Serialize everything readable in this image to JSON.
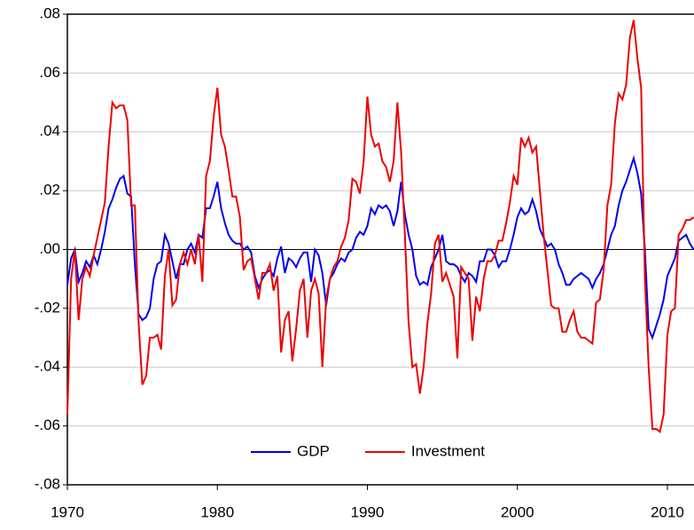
{
  "chart_data": {
    "type": "line",
    "x": [
      1970,
      1970.25,
      1970.5,
      1970.75,
      1971,
      1971.25,
      1971.5,
      1971.75,
      1972,
      1972.25,
      1972.5,
      1972.75,
      1973,
      1973.25,
      1973.5,
      1973.75,
      1974,
      1974.25,
      1974.5,
      1974.75,
      1975,
      1975.25,
      1975.5,
      1975.75,
      1976,
      1976.25,
      1976.5,
      1976.75,
      1977,
      1977.25,
      1977.5,
      1977.75,
      1978,
      1978.25,
      1978.5,
      1978.75,
      1979,
      1979.25,
      1979.5,
      1979.75,
      1980,
      1980.25,
      1980.5,
      1980.75,
      1981,
      1981.25,
      1981.5,
      1981.75,
      1982,
      1982.25,
      1982.5,
      1982.75,
      1983,
      1983.25,
      1983.5,
      1983.75,
      1984,
      1984.25,
      1984.5,
      1984.75,
      1985,
      1985.25,
      1985.5,
      1985.75,
      1986,
      1986.25,
      1986.5,
      1986.75,
      1987,
      1987.25,
      1987.5,
      1987.75,
      1988,
      1988.25,
      1988.5,
      1988.75,
      1989,
      1989.25,
      1989.5,
      1989.75,
      1990,
      1990.25,
      1990.5,
      1990.75,
      1991,
      1991.25,
      1991.5,
      1991.75,
      1992,
      1992.25,
      1992.5,
      1992.75,
      1993,
      1993.25,
      1993.5,
      1993.75,
      1994,
      1994.25,
      1994.5,
      1994.75,
      1995,
      1995.25,
      1995.5,
      1995.75,
      1996,
      1996.25,
      1996.5,
      1996.75,
      1997,
      1997.25,
      1997.5,
      1997.75,
      1998,
      1998.25,
      1998.5,
      1998.75,
      1999,
      1999.25,
      1999.5,
      1999.75,
      2000,
      2000.25,
      2000.5,
      2000.75,
      2001,
      2001.25,
      2001.5,
      2001.75,
      2002,
      2002.25,
      2002.5,
      2002.75,
      2003,
      2003.25,
      2003.5,
      2003.75,
      2004,
      2004.25,
      2004.5,
      2004.75,
      2005,
      2005.25,
      2005.5,
      2005.75,
      2006,
      2006.25,
      2006.5,
      2006.75,
      2007,
      2007.25,
      2007.5,
      2007.75,
      2008,
      2008.25,
      2008.5,
      2008.75,
      2009,
      2009.25,
      2009.5,
      2009.75,
      2010,
      2010.25,
      2010.5,
      2010.75,
      2011,
      2011.25,
      2011.5,
      2011.75
    ],
    "series": [
      {
        "name": "GDP",
        "color": "#0000ee",
        "values": [
          -0.012,
          -0.003,
          0.0,
          -0.011,
          -0.008,
          -0.004,
          -0.006,
          -0.002,
          -0.005,
          0.0,
          0.006,
          0.014,
          0.017,
          0.021,
          0.024,
          0.025,
          0.019,
          0.018,
          -0.005,
          -0.022,
          -0.024,
          -0.023,
          -0.02,
          -0.01,
          -0.005,
          -0.004,
          0.005,
          0.002,
          -0.004,
          -0.01,
          -0.005,
          -0.005,
          0.0,
          0.002,
          -0.001,
          0.005,
          0.004,
          0.014,
          0.014,
          0.018,
          0.023,
          0.014,
          0.009,
          0.005,
          0.003,
          0.002,
          0.002,
          0.0,
          0.001,
          -0.001,
          -0.009,
          -0.013,
          -0.01,
          -0.008,
          -0.007,
          -0.009,
          -0.003,
          0.001,
          -0.008,
          -0.003,
          -0.004,
          -0.006,
          -0.003,
          -0.001,
          -0.001,
          -0.011,
          0.0,
          -0.002,
          -0.008,
          -0.019,
          -0.01,
          -0.008,
          -0.005,
          -0.003,
          -0.004,
          -0.001,
          0.0,
          0.004,
          0.006,
          0.005,
          0.008,
          0.014,
          0.012,
          0.015,
          0.014,
          0.015,
          0.013,
          0.008,
          0.013,
          0.023,
          0.012,
          0.005,
          0.0,
          -0.009,
          -0.012,
          -0.011,
          -0.012,
          -0.006,
          -0.003,
          0.0,
          0.005,
          -0.004,
          -0.005,
          -0.005,
          -0.006,
          -0.009,
          -0.011,
          -0.008,
          -0.009,
          -0.011,
          -0.004,
          -0.004,
          0.0,
          0.0,
          -0.002,
          -0.006,
          -0.004,
          -0.004,
          0.0,
          0.005,
          0.011,
          0.014,
          0.012,
          0.013,
          0.017,
          0.013,
          0.007,
          0.004,
          0.001,
          0.002,
          0.0,
          -0.005,
          -0.008,
          -0.012,
          -0.012,
          -0.01,
          -0.009,
          -0.008,
          -0.009,
          -0.01,
          -0.013,
          -0.01,
          -0.008,
          -0.005,
          0.0,
          0.005,
          0.008,
          0.015,
          0.02,
          0.023,
          0.027,
          0.031,
          0.026,
          0.019,
          0.0,
          -0.027,
          -0.03,
          -0.026,
          -0.022,
          -0.017,
          -0.009,
          -0.006,
          -0.003,
          0.003,
          0.004,
          0.005,
          0.002,
          0.0
        ]
      },
      {
        "name": "Investment",
        "color": "#ee0000",
        "values": [
          -0.056,
          -0.01,
          0.0,
          -0.024,
          -0.01,
          -0.006,
          -0.009,
          -0.002,
          0.004,
          0.01,
          0.016,
          0.035,
          0.05,
          0.048,
          0.049,
          0.049,
          0.044,
          0.015,
          0.015,
          -0.025,
          -0.046,
          -0.043,
          -0.03,
          -0.03,
          -0.029,
          -0.034,
          -0.009,
          0.0,
          -0.019,
          -0.017,
          -0.005,
          -0.001,
          -0.005,
          0.0,
          -0.005,
          0.005,
          -0.011,
          0.025,
          0.03,
          0.045,
          0.055,
          0.039,
          0.035,
          0.027,
          0.018,
          0.018,
          0.011,
          -0.007,
          -0.004,
          -0.003,
          -0.01,
          -0.017,
          -0.008,
          -0.008,
          -0.005,
          -0.014,
          -0.009,
          -0.035,
          -0.024,
          -0.021,
          -0.038,
          -0.027,
          -0.014,
          -0.01,
          -0.03,
          -0.014,
          -0.01,
          -0.015,
          -0.04,
          -0.017,
          -0.01,
          -0.006,
          -0.004,
          0.001,
          0.004,
          0.01,
          0.024,
          0.023,
          0.019,
          0.03,
          0.052,
          0.039,
          0.035,
          0.036,
          0.03,
          0.028,
          0.023,
          0.03,
          0.05,
          0.033,
          0.005,
          -0.025,
          -0.04,
          -0.039,
          -0.049,
          -0.04,
          -0.025,
          -0.015,
          0.002,
          0.005,
          -0.011,
          -0.008,
          -0.012,
          -0.016,
          -0.037,
          -0.006,
          -0.008,
          -0.01,
          -0.031,
          -0.016,
          -0.021,
          -0.01,
          -0.004,
          -0.004,
          -0.002,
          0.003,
          0.003,
          0.009,
          0.016,
          0.025,
          0.022,
          0.038,
          0.035,
          0.038,
          0.033,
          0.035,
          0.02,
          0.005,
          -0.007,
          -0.019,
          -0.02,
          -0.02,
          -0.028,
          -0.028,
          -0.024,
          -0.021,
          -0.028,
          -0.03,
          -0.03,
          -0.031,
          -0.032,
          -0.018,
          -0.017,
          -0.007,
          0.015,
          0.022,
          0.043,
          0.053,
          0.051,
          0.056,
          0.072,
          0.078,
          0.065,
          0.055,
          -0.01,
          -0.04,
          -0.061,
          -0.061,
          -0.062,
          -0.056,
          -0.029,
          -0.021,
          -0.02,
          0.005,
          0.007,
          0.01,
          0.01,
          0.011
        ]
      }
    ],
    "xlim": [
      1970,
      2011.75
    ],
    "xticks": [
      1970,
      1980,
      1990,
      2000,
      2010
    ],
    "ylim": [
      -0.08,
      0.08
    ],
    "yticks": [
      {
        "value": -0.08,
        "label": "-.08"
      },
      {
        "value": -0.06,
        "label": "-.06"
      },
      {
        "value": -0.04,
        "label": "-.04"
      },
      {
        "value": -0.02,
        "label": "-.02"
      },
      {
        "value": 0,
        "label": ".00"
      },
      {
        "value": 0.02,
        "label": ".02"
      },
      {
        "value": 0.04,
        "label": ".04"
      },
      {
        "value": 0.06,
        "label": ".06"
      },
      {
        "value": 0.08,
        "label": ".08"
      }
    ],
    "grid": true,
    "legend": "bottom"
  }
}
